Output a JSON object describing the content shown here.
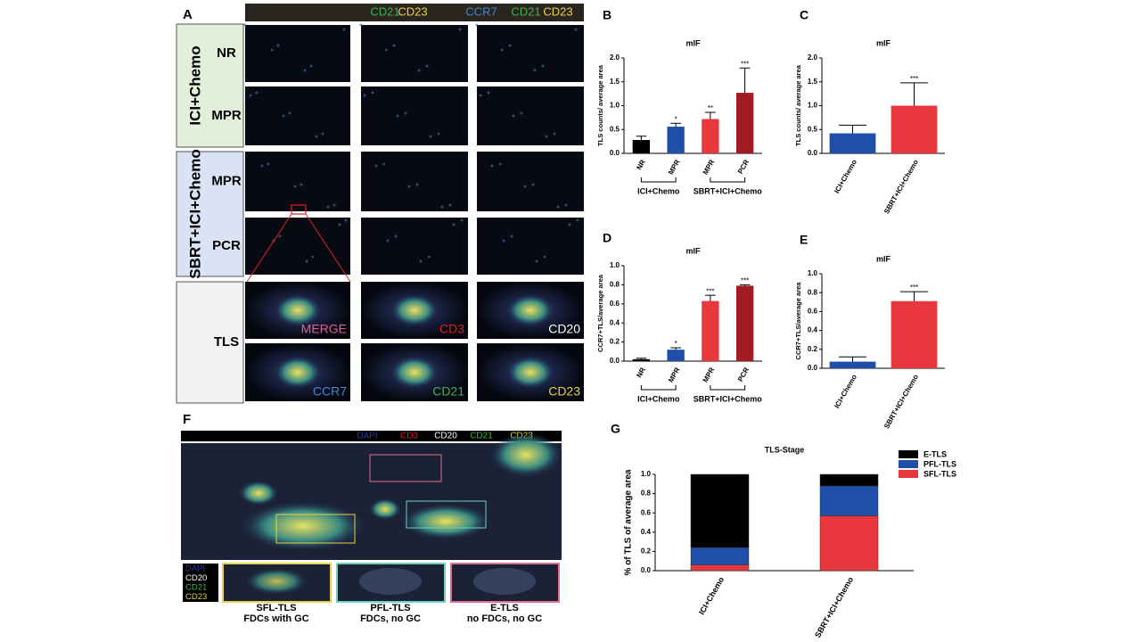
{
  "panel_a": {
    "label": "A",
    "header": [
      [
        {
          "text": "CD21",
          "color": "#3cb44b"
        },
        {
          "text": "CD23",
          "color": "#e8d24a"
        }
      ],
      [
        {
          "text": "CCR7",
          "color": "#3a8ad6"
        },
        {
          "text": "CD21",
          "color": "#3cb44b"
        },
        {
          "text": "CD23",
          "color": "#e8d24a"
        }
      ]
    ],
    "groups": [
      {
        "name": "ICI+Chemo",
        "color": "#e2efda",
        "rows": [
          "NR",
          "MPR"
        ]
      },
      {
        "name": "SBRT+ICI+Chemo",
        "color": "#dae3f3",
        "rows": [
          "MPR",
          "PCR"
        ]
      },
      {
        "name": "TLS",
        "color": "#f2f2f2",
        "rows": []
      }
    ],
    "tls_labels": [
      [
        {
          "text": "MERGE",
          "color": "#e06090"
        },
        {
          "text": "CD3",
          "color": "#e02020"
        },
        {
          "text": "CD20",
          "color": "#ffffff"
        }
      ],
      [
        {
          "text": "CCR7",
          "color": "#3a8ad6"
        },
        {
          "text": "CD21",
          "color": "#3cb44b"
        },
        {
          "text": "CD23",
          "color": "#e8d24a"
        }
      ]
    ]
  },
  "panel_f": {
    "label": "F",
    "header": [
      {
        "text": "DAPI",
        "color": "#2a3a9a"
      },
      {
        "text": "CD3",
        "color": "#e02020"
      },
      {
        "text": "CD20",
        "color": "#ffffff"
      },
      {
        "text": "CD21",
        "color": "#3cb44b"
      },
      {
        "text": "CD23",
        "color": "#e8d24a"
      }
    ],
    "legend": [
      {
        "text": "DAPI",
        "color": "#2a3a9a"
      },
      {
        "text": "CD20",
        "color": "#ffffff"
      },
      {
        "text": "CD21",
        "color": "#3cb44b"
      },
      {
        "text": "CD23",
        "color": "#e8d24a"
      }
    ],
    "insets": [
      {
        "name": "SFL-TLS",
        "caption": "FDCs with GC",
        "color": "#e8d24a"
      },
      {
        "name": "PFL-TLS",
        "caption": "FDCs, no GC",
        "color": "#6fd0c0"
      },
      {
        "name": "E-TLS",
        "caption": "no FDCs, no GC",
        "color": "#e07090"
      }
    ]
  },
  "chart_data": [
    {
      "type": "bar",
      "panel": "B",
      "title": "mIF",
      "y_label": "TLS counts/ average area",
      "categories": [
        "NR",
        "MPR",
        "MPR",
        "PCR"
      ],
      "values": [
        0.28,
        0.56,
        0.72,
        1.27
      ],
      "errors": [
        0.08,
        0.07,
        0.14,
        0.52
      ],
      "annotations": [
        null,
        "*",
        "**",
        "***"
      ],
      "colors": [
        "#000000",
        "#1f4fa8",
        "#e8383d",
        "#a01c24"
      ],
      "groups": [
        {
          "name": "ICI+Chemo",
          "size": 2
        },
        {
          "name": "SBRT+ICI+Chemo",
          "size": 2
        }
      ],
      "ylim": [
        0,
        2
      ],
      "yticks": [
        {
          "value": 0,
          "label": "0.0"
        },
        {
          "value": 0.5,
          "label": "0.5"
        },
        {
          "value": 1,
          "label": "1.0"
        },
        {
          "value": 1.5,
          "label": "1.5"
        },
        {
          "value": 2,
          "label": "2.0"
        }
      ]
    },
    {
      "type": "bar",
      "panel": "C",
      "title": "mIF",
      "y_label": "TLS counts/ average area",
      "categories": [
        "ICI+Chemo",
        "SBRT+ICI+Chemo"
      ],
      "values": [
        0.42,
        1.0
      ],
      "errors": [
        0.17,
        0.48
      ],
      "annotations": [
        null,
        "***"
      ],
      "colors": [
        "#1f4fa8",
        "#e8383d"
      ],
      "ylim": [
        0,
        2
      ],
      "yticks": [
        {
          "value": 0,
          "label": "0.0"
        },
        {
          "value": 0.5,
          "label": "0.5"
        },
        {
          "value": 1,
          "label": "1.0"
        },
        {
          "value": 1.5,
          "label": "1.5"
        },
        {
          "value": 2,
          "label": "2.0"
        }
      ]
    },
    {
      "type": "bar",
      "panel": "D",
      "title": "mIF",
      "y_label": "CCR7+TLS/average area",
      "categories": [
        "NR",
        "MPR",
        "MPR",
        "PCR"
      ],
      "values": [
        0.02,
        0.12,
        0.63,
        0.79
      ],
      "errors": [
        0.01,
        0.02,
        0.06,
        0.01
      ],
      "annotations": [
        null,
        "*",
        "***",
        "***"
      ],
      "colors": [
        "#000000",
        "#1f4fa8",
        "#e8383d",
        "#a01c24"
      ],
      "groups": [
        {
          "name": "ICI+Chemo",
          "size": 2
        },
        {
          "name": "SBRT+ICI+Chemo",
          "size": 2
        }
      ],
      "ylim": [
        0,
        1
      ],
      "yticks": [
        {
          "value": 0,
          "label": "0.0"
        },
        {
          "value": 0.2,
          "label": "0.2"
        },
        {
          "value": 0.4,
          "label": "0.4"
        },
        {
          "value": 0.6,
          "label": "0.6"
        },
        {
          "value": 0.8,
          "label": "0.8"
        },
        {
          "value": 1,
          "label": "1.0"
        }
      ]
    },
    {
      "type": "bar",
      "panel": "E",
      "title": "mIF",
      "y_label": "CCR7+TLS/average area",
      "categories": [
        "ICI+Chemo",
        "SBRT+ICI+Chemo"
      ],
      "values": [
        0.07,
        0.71
      ],
      "errors": [
        0.05,
        0.1
      ],
      "annotations": [
        null,
        "***"
      ],
      "colors": [
        "#1f4fa8",
        "#e8383d"
      ],
      "ylim": [
        0,
        1
      ],
      "yticks": [
        {
          "value": 0,
          "label": "0.0"
        },
        {
          "value": 0.2,
          "label": "0.2"
        },
        {
          "value": 0.4,
          "label": "0.4"
        },
        {
          "value": 0.6,
          "label": "0.6"
        },
        {
          "value": 0.8,
          "label": "0.8"
        },
        {
          "value": 1,
          "label": "1.0"
        }
      ]
    },
    {
      "type": "stacked_bar",
      "panel": "G",
      "title": "TLS-Stage",
      "y_label": "% of TLS of average area",
      "categories": [
        "ICI+Chemo",
        "SBRT+ICI+Chemo"
      ],
      "series": [
        {
          "name": "SFL-TLS",
          "color": "#e8383d",
          "values": [
            0.06,
            0.57
          ]
        },
        {
          "name": "PFL-TLS",
          "color": "#1f4fa8",
          "values": [
            0.18,
            0.31
          ]
        },
        {
          "name": "E-TLS",
          "color": "#000000",
          "values": [
            0.76,
            0.12
          ]
        }
      ],
      "ylim": [
        0,
        1
      ],
      "yticks": [
        {
          "value": 0,
          "label": "0.0"
        },
        {
          "value": 0.2,
          "label": "0.2"
        },
        {
          "value": 0.4,
          "label": "0.4"
        },
        {
          "value": 0.6,
          "label": "0.6"
        },
        {
          "value": 0.8,
          "label": "0.8"
        },
        {
          "value": 1,
          "label": "1.0"
        }
      ]
    }
  ]
}
